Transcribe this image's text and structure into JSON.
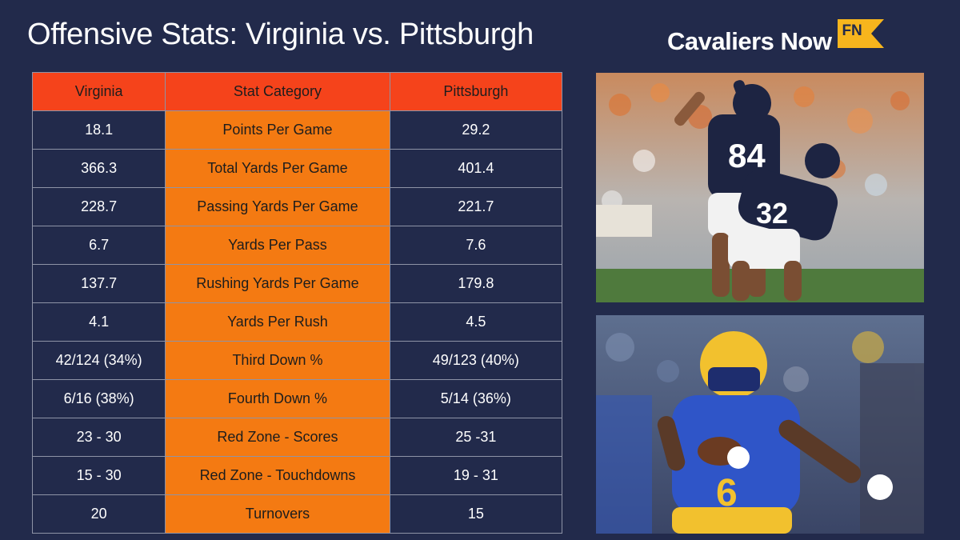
{
  "header": {
    "title": "Offensive Stats: Virginia vs. Pittsburgh",
    "brand": "Cavaliers Now",
    "brand_badge": "FN"
  },
  "table": {
    "headers": [
      "Virginia",
      "Stat Category",
      "Pittsburgh"
    ],
    "rows": [
      [
        "18.1",
        "Points Per Game",
        "29.2"
      ],
      [
        "366.3",
        "Total Yards Per Game",
        "401.4"
      ],
      [
        "228.7",
        "Passing Yards Per Game",
        "221.7"
      ],
      [
        "6.7",
        "Yards Per Pass",
        "7.6"
      ],
      [
        "137.7",
        "Rushing Yards Per Game",
        "179.8"
      ],
      [
        "4.1",
        "Yards Per Rush",
        "4.5"
      ],
      [
        "42/124 (34%)",
        "Third Down %",
        "49/123 (40%)"
      ],
      [
        "6/16 (38%)",
        "Fourth Down %",
        "5/14 (36%)"
      ],
      [
        "23 - 30",
        "Red Zone - Scores",
        "25 -31"
      ],
      [
        "15 - 30",
        "Red Zone - Touchdowns",
        "19 - 31"
      ],
      [
        "20",
        "Turnovers",
        "15"
      ]
    ]
  },
  "colors": {
    "background": "#222a4b",
    "header_cell": "#f5431b",
    "category_cell": "#f47a12",
    "badge": "#f7b51d"
  },
  "photos": {
    "top": {
      "jersey_numbers": [
        "84",
        "32"
      ]
    },
    "bottom": {
      "jersey_number": "6"
    }
  }
}
